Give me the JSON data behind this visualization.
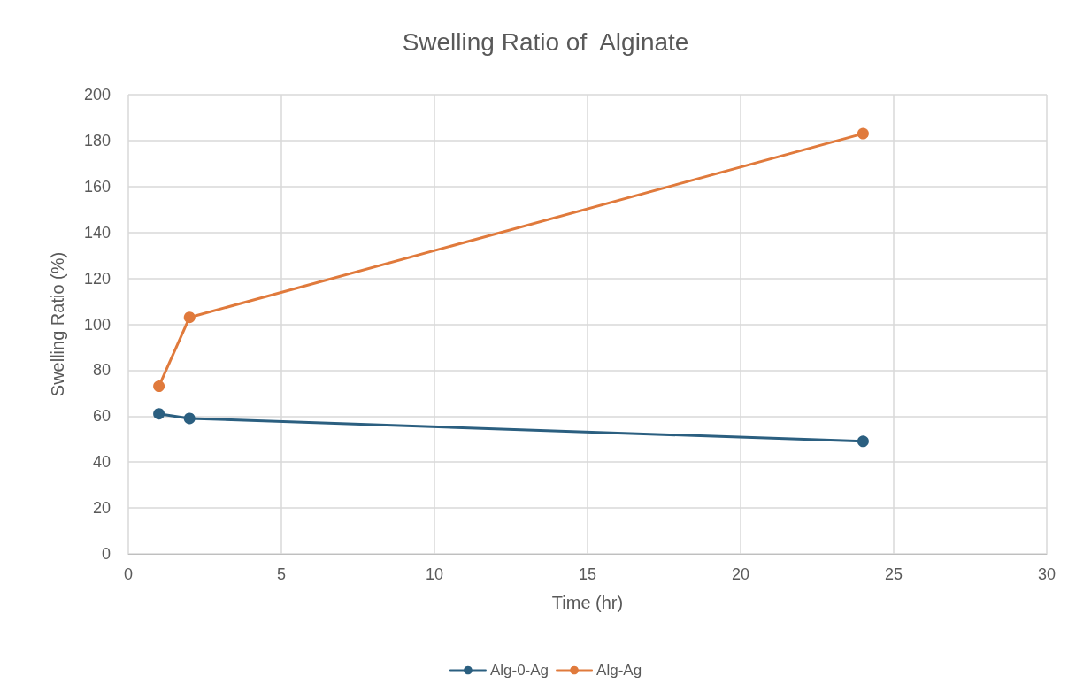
{
  "chart_data": {
    "type": "line",
    "title": "Swelling Ratio of  Alginate",
    "xlabel": "Time (hr)",
    "ylabel": "Swelling Ratio (%)",
    "x": [
      1,
      2,
      24
    ],
    "series": [
      {
        "name": "Alg-0-Ag",
        "color": "#2b5f80",
        "values": [
          61,
          59,
          49
        ]
      },
      {
        "name": "Alg-Ag",
        "color": "#e07a3c",
        "values": [
          73,
          103,
          183
        ]
      }
    ],
    "xlim": [
      0,
      30
    ],
    "xticks": [
      0,
      5,
      10,
      15,
      20,
      25,
      30
    ],
    "ylim": [
      0,
      200
    ],
    "yticks": [
      0,
      20,
      40,
      60,
      80,
      100,
      120,
      140,
      160,
      180,
      200
    ],
    "grid": true,
    "legend": "bottom",
    "marker": "circle",
    "line_style": "solid"
  }
}
